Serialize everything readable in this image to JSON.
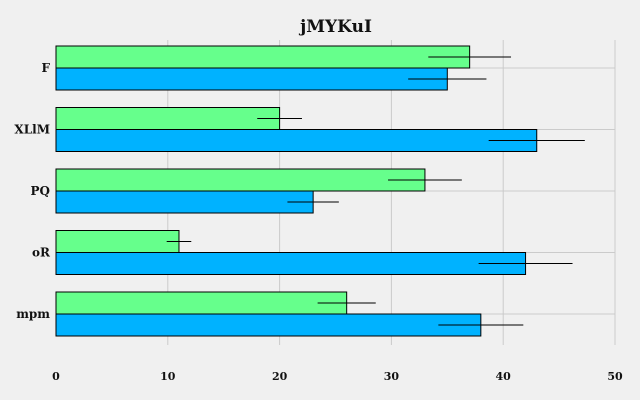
{
  "chart_data": {
    "type": "bar",
    "orientation": "horizontal",
    "title": "jMYKuI",
    "xlabel": "",
    "ylabel": "",
    "categories": [
      "F",
      "XLlM",
      "PQ",
      "oR",
      "mpm"
    ],
    "xlim": [
      0,
      50
    ],
    "xticks": [
      0,
      10,
      20,
      30,
      40,
      50
    ],
    "grid": true,
    "series": [
      {
        "color": "#66ff8c",
        "values": [
          37,
          20,
          33,
          11,
          26
        ],
        "errors": [
          3.7,
          2.0,
          3.3,
          1.1,
          2.6
        ]
      },
      {
        "color": "#00b2ff",
        "values": [
          35,
          43,
          23,
          42,
          38
        ],
        "errors": [
          3.5,
          4.3,
          2.3,
          4.2,
          3.8
        ]
      }
    ]
  }
}
